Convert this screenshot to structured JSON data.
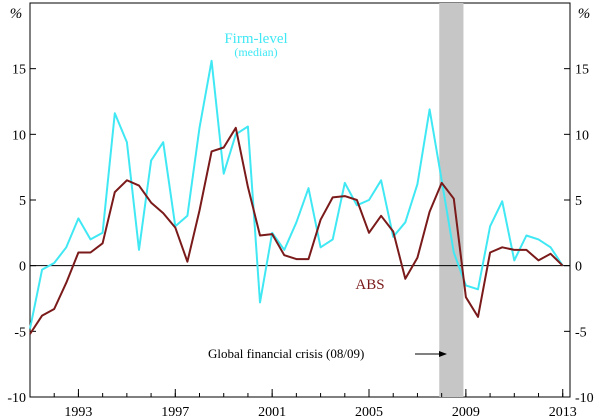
{
  "chart_data": {
    "type": "line",
    "y_unit_left": "%",
    "y_unit_right": "%",
    "ylim": [
      -10,
      20
    ],
    "yticks": [
      -10,
      -5,
      0,
      5,
      10,
      15
    ],
    "xlim": [
      1991,
      2013.3
    ],
    "xticks": [
      1993,
      1997,
      2001,
      2005,
      2009,
      2013
    ],
    "shaded_region": {
      "start": 2007.9,
      "end": 2008.9
    },
    "annotation": "Global financial crisis (08/09)",
    "series": [
      {
        "name": "Firm-level",
        "sublabel": "(median)",
        "color": "#40e8f4",
        "x": [
          1991.0,
          1991.5,
          1992.0,
          1992.5,
          1993.0,
          1993.5,
          1994.0,
          1994.5,
          1995.0,
          1995.5,
          1996.0,
          1996.5,
          1997.0,
          1997.5,
          1998.0,
          1998.5,
          1999.0,
          1999.5,
          2000.0,
          2000.5,
          2001.0,
          2001.5,
          2002.0,
          2002.5,
          2003.0,
          2003.5,
          2004.0,
          2004.5,
          2005.0,
          2005.5,
          2006.0,
          2006.5,
          2007.0,
          2007.5,
          2008.0,
          2008.5,
          2009.0,
          2009.5,
          2010.0,
          2010.5,
          2011.0,
          2011.5,
          2012.0,
          2012.5,
          2013.0
        ],
        "values": [
          -4.8,
          -0.3,
          0.2,
          1.4,
          3.6,
          2.0,
          2.5,
          11.6,
          9.4,
          1.2,
          8.0,
          9.4,
          3.0,
          3.8,
          10.5,
          15.6,
          7.0,
          10.0,
          10.6,
          -2.8,
          2.5,
          1.2,
          3.3,
          5.9,
          1.4,
          2.0,
          6.3,
          4.6,
          5.0,
          6.5,
          2.2,
          3.3,
          6.2,
          11.9,
          6.5,
          1.0,
          -1.5,
          -1.8,
          3.0,
          4.9,
          0.4,
          2.3,
          2.0,
          1.4,
          0.0
        ]
      },
      {
        "name": "ABS",
        "color": "#7a1a1a",
        "x": [
          1991.0,
          1991.5,
          1992.0,
          1992.5,
          1993.0,
          1993.5,
          1994.0,
          1994.5,
          1995.0,
          1995.5,
          1996.0,
          1996.5,
          1997.0,
          1997.5,
          1998.0,
          1998.5,
          1999.0,
          1999.5,
          2000.0,
          2000.5,
          2001.0,
          2001.5,
          2002.0,
          2002.5,
          2003.0,
          2003.5,
          2004.0,
          2004.5,
          2005.0,
          2005.5,
          2006.0,
          2006.5,
          2007.0,
          2007.5,
          2008.0,
          2008.5,
          2009.0,
          2009.5,
          2010.0,
          2010.5,
          2011.0,
          2011.5,
          2012.0,
          2012.5,
          2013.0
        ],
        "values": [
          -5.2,
          -3.8,
          -3.3,
          -1.3,
          1.0,
          1.0,
          1.7,
          5.6,
          6.5,
          6.1,
          4.8,
          4.0,
          2.9,
          0.3,
          4.2,
          8.7,
          9.0,
          10.5,
          6.0,
          2.3,
          2.4,
          0.8,
          0.5,
          0.5,
          3.5,
          5.2,
          5.3,
          5.0,
          2.5,
          3.8,
          2.6,
          -1.0,
          0.6,
          4.1,
          6.3,
          5.1,
          -2.4,
          -3.9,
          1.0,
          1.4,
          1.2,
          1.2,
          0.4,
          0.9,
          0.0
        ]
      }
    ]
  }
}
